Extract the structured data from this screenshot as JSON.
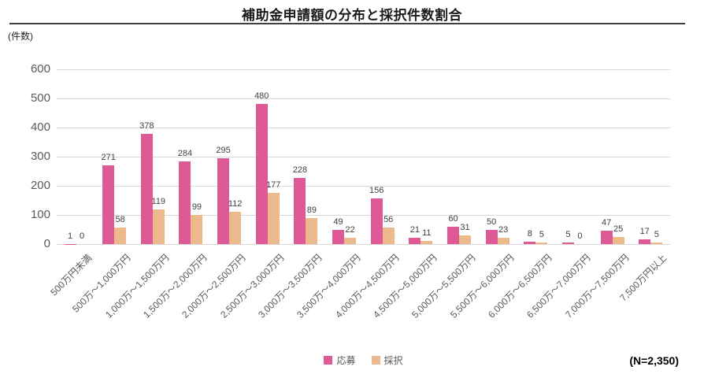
{
  "title": "補助金申請額の分布と採択件数割合",
  "y_axis_unit_label": "(件数)",
  "footnote": "(N=2,350)",
  "colors": {
    "applied": "#dd5a97",
    "adopted": "#ecb98d",
    "grid": "#d9d9d9",
    "axis_text": "#595959",
    "value_label": "#404040",
    "title_underline": "#3f3f3f"
  },
  "legend": {
    "items": [
      {
        "label": "応募",
        "color_key": "applied"
      },
      {
        "label": "採択",
        "color_key": "adopted"
      }
    ]
  },
  "chart_data": {
    "type": "bar",
    "title": "補助金申請額の分布と採択件数割合",
    "categories": [
      "500万円未満",
      "500万～1,000万円",
      "1,000万～1,500万円",
      "1,500万～2,000万円",
      "2,000万～2,500万円",
      "2,500万～3,000万円",
      "3,000万～3,500万円",
      "3,500万～4,000万円",
      "4,000万～4,500万円",
      "4,500万～5,000万円",
      "5,000万～5,500万円",
      "5,500万～6,000万円",
      "6,000万～6,500万円",
      "6,500万～7,000万円",
      "7,000万～7,500万円",
      "7,500万円以上"
    ],
    "series": [
      {
        "name": "応募",
        "values": [
          1,
          271,
          378,
          284,
          295,
          480,
          228,
          49,
          156,
          21,
          60,
          50,
          8,
          5,
          47,
          17
        ]
      },
      {
        "name": "採択",
        "values": [
          0,
          58,
          119,
          99,
          112,
          177,
          89,
          22,
          56,
          11,
          31,
          23,
          5,
          0,
          25,
          5
        ]
      }
    ],
    "xlabel": "",
    "ylabel": "(件数)",
    "ylim": [
      0,
      600
    ],
    "yticks": [
      0,
      100,
      200,
      300,
      400,
      500,
      600
    ],
    "grid": true,
    "legend_position": "bottom",
    "value_labels": true,
    "sample_size_note": "(N=2,350)"
  }
}
